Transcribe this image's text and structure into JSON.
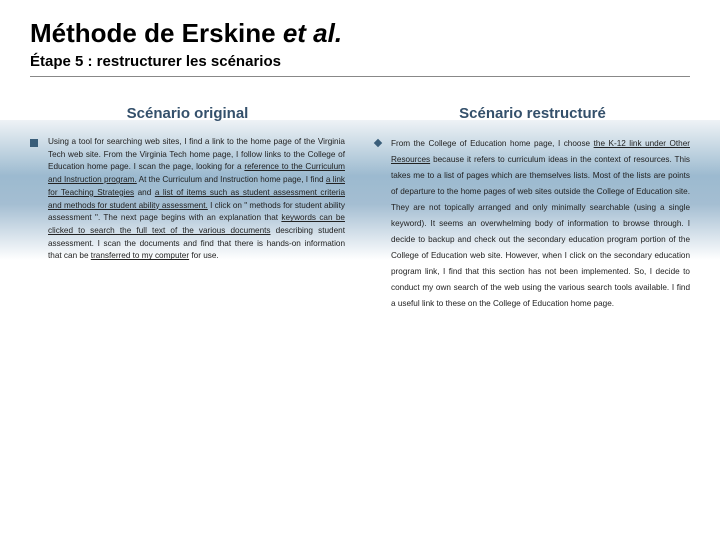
{
  "title_main": "Méthode de Erskine ",
  "title_etal": "et al.",
  "subtitle": "Étape 5 : restructurer les scénarios",
  "left": {
    "heading": "Scénario original"
  },
  "right": {
    "heading": "Scénario restructuré"
  },
  "colors": {
    "heading": "#34506b",
    "bullet": "#3a5e7a"
  }
}
